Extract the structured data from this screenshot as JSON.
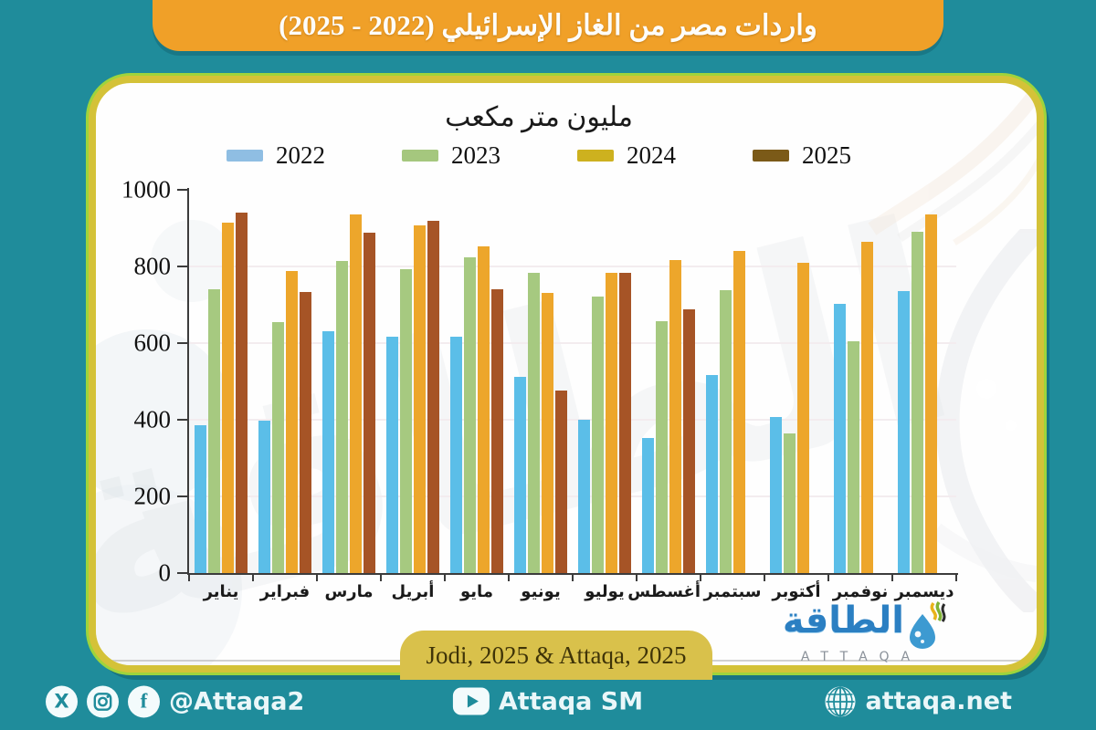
{
  "header": {
    "title": "واردات مصر من الغاز الإسرائيلي (2022 - 2025)"
  },
  "chart_data": {
    "type": "bar",
    "title": "مليون متر مكعب",
    "categories": [
      "يناير",
      "فبراير",
      "مارس",
      "أبريل",
      "مايو",
      "يونيو",
      "يوليو",
      "أغسطس",
      "سبتمبر",
      "أكتوبر",
      "نوفمبر",
      "ديسمبر"
    ],
    "series": [
      {
        "name": "2022",
        "color": "#5BBEE8",
        "legend_color": "#8FBEE3",
        "values": [
          385,
          397,
          632,
          616,
          616,
          511,
          400,
          352,
          517,
          407,
          703,
          736
        ]
      },
      {
        "name": "2023",
        "color": "#A6C980",
        "legend_color": "#A5C77E",
        "values": [
          740,
          655,
          815,
          792,
          823,
          783,
          722,
          656,
          737,
          364,
          605,
          891
        ]
      },
      {
        "name": "2024",
        "color": "#EDA62B",
        "legend_color": "#CDB11F",
        "values": [
          915,
          787,
          935,
          908,
          852,
          732,
          783,
          817,
          841,
          809,
          865,
          935
        ]
      },
      {
        "name": "2025",
        "color": "#A65426",
        "legend_color": "#7B5A18",
        "values": [
          940,
          733,
          888,
          920,
          740,
          477,
          784,
          688,
          null,
          null,
          null,
          null
        ]
      }
    ],
    "ylim": [
      0,
      1000
    ],
    "yticks": [
      0,
      200,
      400,
      600,
      800,
      1000
    ],
    "grid": "horizontal-light",
    "legend_position": "top-center"
  },
  "source_badge": {
    "label": "Jodi, 2025 & Attaqa, 2025"
  },
  "logo": {
    "arabic": "الطاقة",
    "latin": "ATTAQA"
  },
  "watermark": {
    "text": "الطاقة"
  },
  "footer": {
    "social_handle": "@Attaqa2",
    "youtube_label": "Attaqa SM",
    "website": "attaqa.net"
  },
  "colors": {
    "background_teal": "#1F8C9B",
    "banner_orange": "#F0A028",
    "card_border_yellow": "#D4C238",
    "card_outline_lime": "#9ED43C",
    "pill_mustard": "#D9C14B",
    "logo_blue": "#2B7FC2"
  }
}
